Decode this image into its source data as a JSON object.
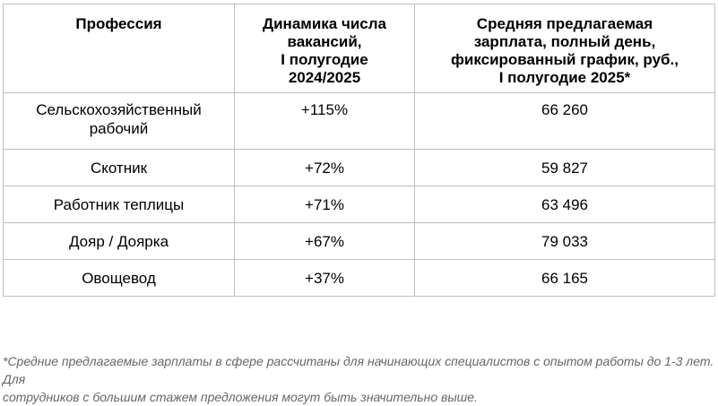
{
  "table": {
    "headers": [
      [
        "Профессия"
      ],
      [
        "Динамика числа",
        "вакансий,",
        "I полугодие",
        "2024/2025"
      ],
      [
        "Средняя предлагаемая",
        "зарплата, полный день,",
        "фиксированный график, руб.,",
        "I полугодие 2025*"
      ]
    ],
    "rows": [
      {
        "profession": [
          "Сельскохозяйственный",
          "рабочий"
        ],
        "dynamics": "+115%",
        "salary": "66 260"
      },
      {
        "profession": [
          "Скотник"
        ],
        "dynamics": "+72%",
        "salary": "59 827"
      },
      {
        "profession": [
          "Работник теплицы"
        ],
        "dynamics": "+71%",
        "salary": "63 496"
      },
      {
        "profession": [
          "Дояр / Доярка"
        ],
        "dynamics": "+67%",
        "salary": "79 033"
      },
      {
        "profession": [
          "Овощевод"
        ],
        "dynamics": "+37%",
        "salary": "66 165"
      }
    ]
  },
  "footnote": {
    "line1": "*Средние предлагаемые зарплаты в сфере рассчитаны для начинающих специалистов с опытом работы до 1-3 лет. Для",
    "line2": "сотрудников с большим стажем предложения могут быть значительно выше."
  }
}
